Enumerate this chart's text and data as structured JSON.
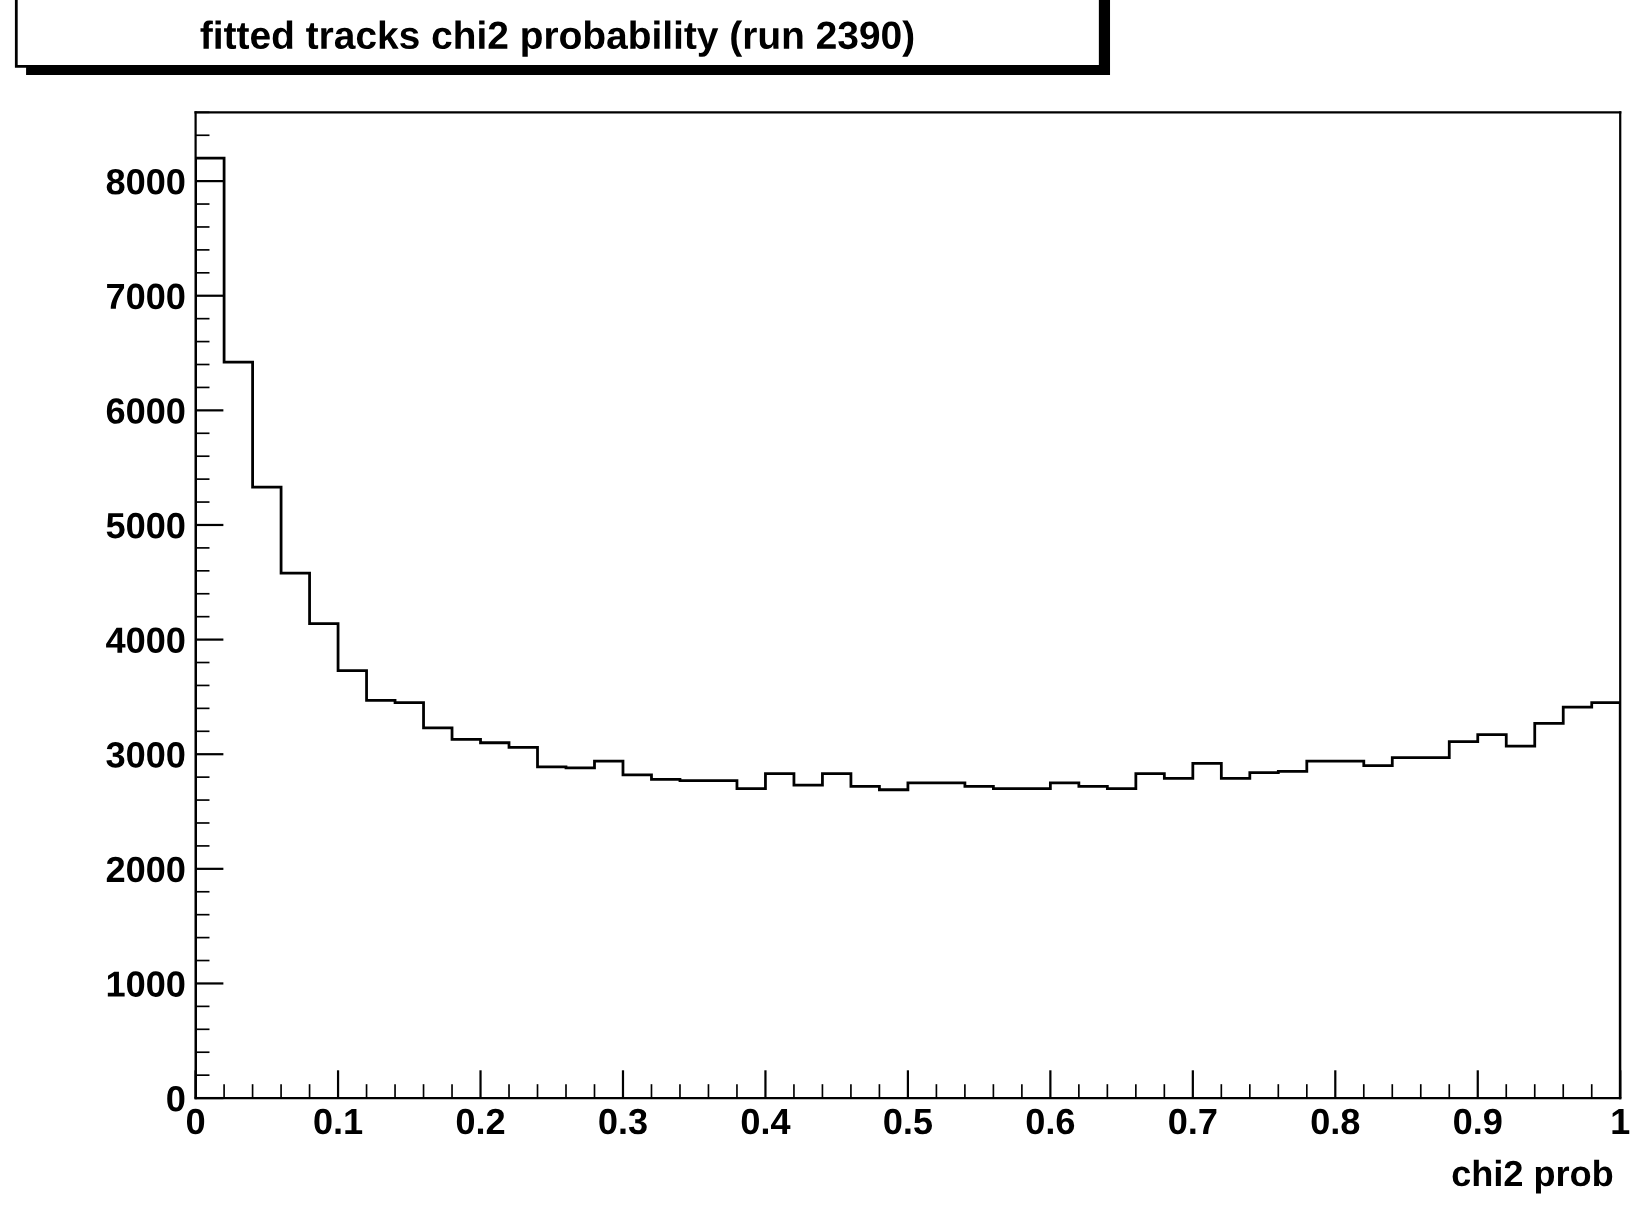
{
  "chart_data": {
    "type": "histogram",
    "title": "fitted tracks chi2 probability (run 2390)",
    "xlabel": "chi2 prob",
    "bins": [
      0,
      0.02,
      0.04,
      0.06,
      0.08,
      0.1,
      0.12,
      0.14,
      0.16,
      0.18,
      0.2,
      0.22,
      0.24,
      0.26,
      0.28,
      0.3,
      0.32,
      0.34,
      0.36,
      0.38,
      0.4,
      0.42,
      0.44,
      0.46,
      0.48,
      0.5,
      0.52,
      0.54,
      0.56,
      0.58,
      0.6,
      0.62,
      0.64,
      0.66,
      0.68,
      0.7,
      0.72,
      0.74,
      0.76,
      0.78,
      0.8,
      0.82,
      0.84,
      0.86,
      0.88,
      0.9,
      0.92,
      0.94,
      0.96,
      0.98,
      1
    ],
    "values": [
      8200,
      6420,
      5330,
      4580,
      4140,
      3730,
      3470,
      3450,
      3230,
      3130,
      3100,
      3060,
      2890,
      2880,
      2940,
      2820,
      2780,
      2770,
      2770,
      2700,
      2830,
      2730,
      2830,
      2720,
      2690,
      2750,
      2750,
      2720,
      2700,
      2700,
      2750,
      2720,
      2700,
      2830,
      2790,
      2920,
      2790,
      2840,
      2850,
      2940,
      2940,
      2900,
      2970,
      2970,
      3110,
      3170,
      3070,
      3270,
      3410,
      3450
    ],
    "color": "#000000",
    "xlim": [
      0,
      1
    ],
    "ylim": [
      0,
      8600
    ],
    "xticks": [
      {
        "value": 0,
        "label": "0"
      },
      0.1,
      0.2,
      0.3,
      0.4,
      0.5,
      0.6,
      0.7,
      0.8,
      0.9,
      {
        "value": 1,
        "label": "1"
      }
    ],
    "yticks": [
      0,
      1000,
      2000,
      3000,
      4000,
      5000,
      6000,
      7000,
      8000
    ],
    "grid": false
  }
}
